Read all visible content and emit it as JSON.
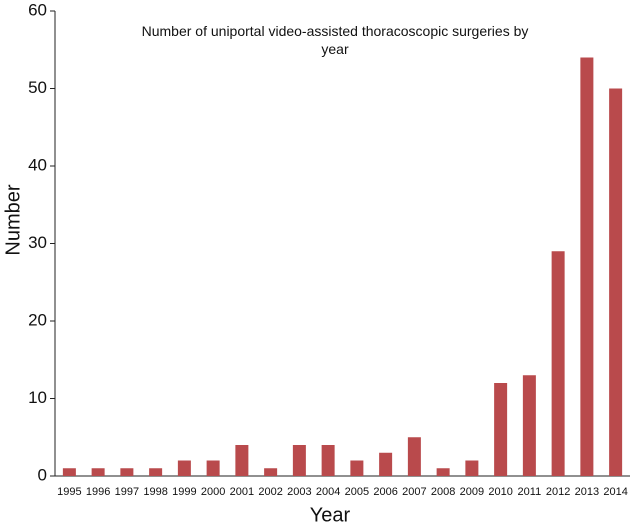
{
  "chart_data": {
    "type": "bar",
    "title": "Number of uniportal video-assisted thoracoscopic surgeries by year",
    "x_label": "Year",
    "y_label": "Number",
    "categories": [
      "1995",
      "1996",
      "1997",
      "1998",
      "1999",
      "2000",
      "2001",
      "2002",
      "2003",
      "2004",
      "2005",
      "2006",
      "2007",
      "2008",
      "2009",
      "2010",
      "2011",
      "2012",
      "2013",
      "2014"
    ],
    "values": [
      1,
      1,
      1,
      1,
      2,
      2,
      4,
      1,
      4,
      4,
      2,
      3,
      5,
      1,
      2,
      12,
      13,
      29,
      54,
      50
    ],
    "color": "#b94a4c",
    "ylim": [
      0,
      60
    ],
    "yticks": [
      0,
      10,
      20,
      30,
      40,
      50,
      60
    ],
    "grid": false
  }
}
